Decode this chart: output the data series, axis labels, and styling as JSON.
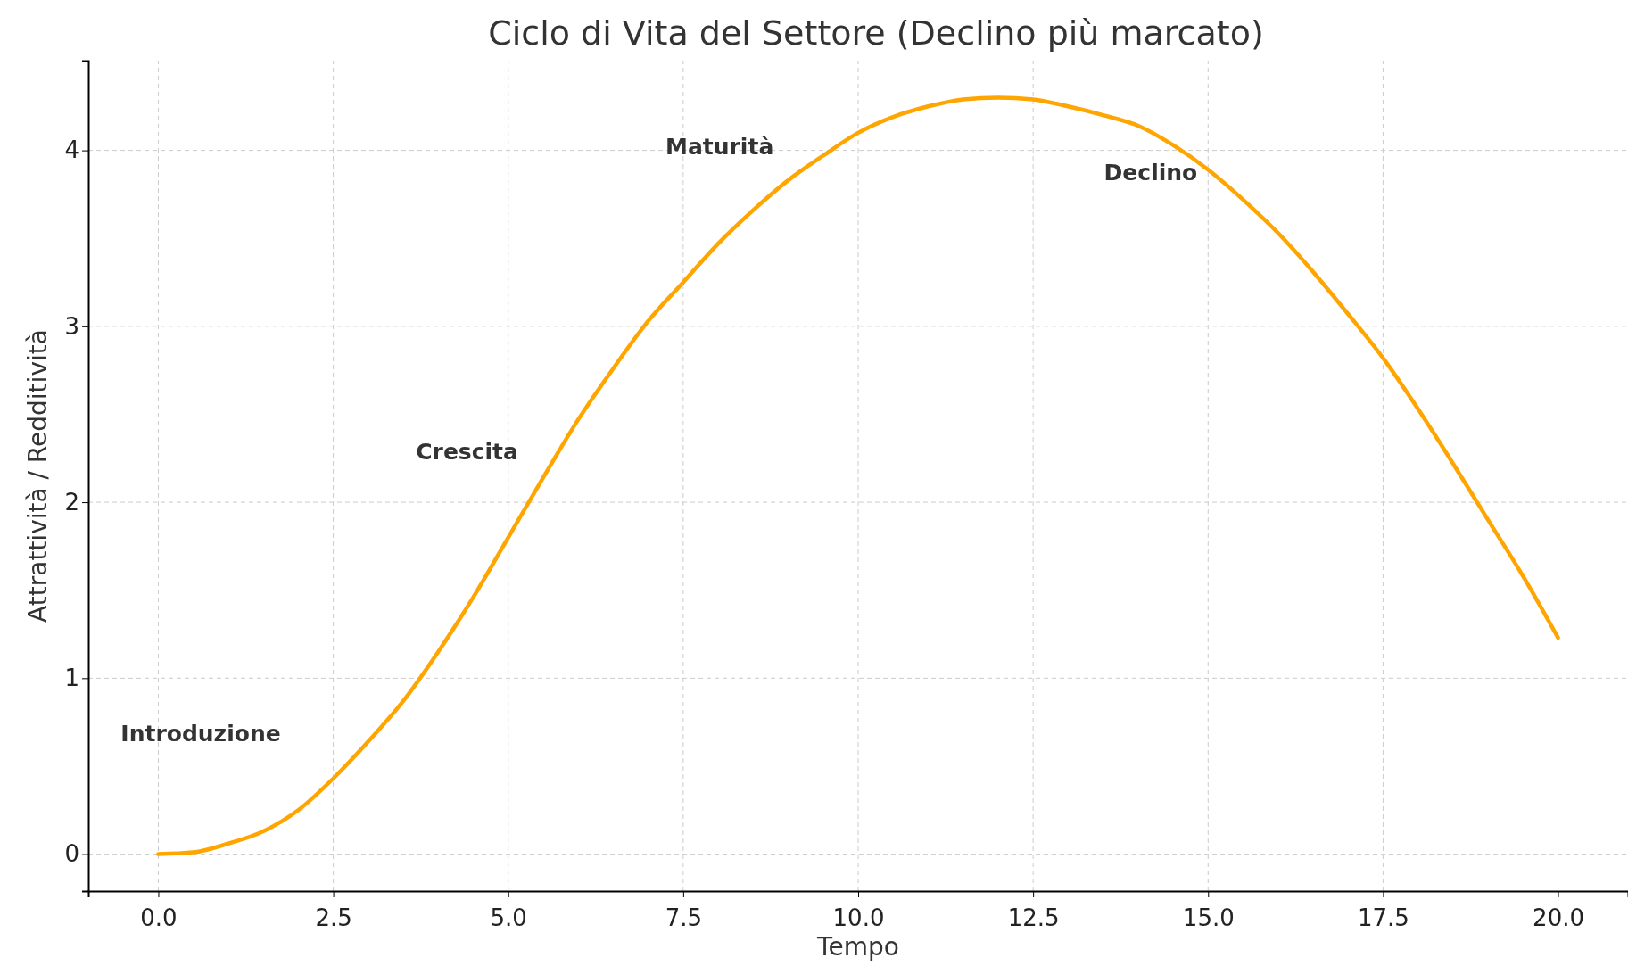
{
  "chart_data": {
    "type": "line",
    "title": "Ciclo di Vita del Settore (Declino più marcato)",
    "xlabel": "Tempo",
    "ylabel": "Attrattività / Redditività",
    "x": [
      0,
      0.5,
      1,
      1.5,
      2,
      2.5,
      3,
      3.5,
      4,
      4.5,
      5,
      5.5,
      6,
      6.5,
      7,
      7.5,
      8,
      8.5,
      9,
      9.5,
      10,
      10.5,
      11,
      11.5,
      12,
      12.5,
      13,
      13.5,
      14,
      14.5,
      15,
      15.5,
      16,
      16.5,
      17,
      17.5,
      18,
      18.5,
      19,
      19.5,
      20
    ],
    "series": [
      {
        "color": "#ffa500",
        "values": [
          0,
          0.01,
          0.06,
          0.13,
          0.25,
          0.43,
          0.64,
          0.87,
          1.15,
          1.46,
          1.8,
          2.14,
          2.47,
          2.76,
          3.03,
          3.25,
          3.47,
          3.66,
          3.83,
          3.97,
          4.1,
          4.19,
          4.25,
          4.29,
          4.3,
          4.29,
          4.25,
          4.2,
          4.14,
          4.03,
          3.89,
          3.72,
          3.53,
          3.31,
          3.07,
          2.82,
          2.53,
          2.22,
          1.9,
          1.58,
          1.23
        ]
      }
    ],
    "xlim": [
      -1,
      21
    ],
    "ylim": [
      -0.21,
      4.51
    ],
    "xticks": [
      {
        "value": 0,
        "label": "0.0"
      },
      {
        "value": 2.5,
        "label": "2.5"
      },
      {
        "value": 5,
        "label": "5.0"
      },
      {
        "value": 7.5,
        "label": "7.5"
      },
      {
        "value": 10,
        "label": "10.0"
      },
      {
        "value": 12.5,
        "label": "12.5"
      },
      {
        "value": 15,
        "label": "15.0"
      },
      {
        "value": 17.5,
        "label": "17.5"
      },
      {
        "value": 20,
        "label": "20.0"
      }
    ],
    "yticks": [
      0,
      1,
      2,
      3,
      4
    ],
    "annotations": [
      "Introduzione",
      "Crescita",
      "Maturità",
      "Declino"
    ],
    "grid": true,
    "marker": "none",
    "line_style": "solid"
  }
}
